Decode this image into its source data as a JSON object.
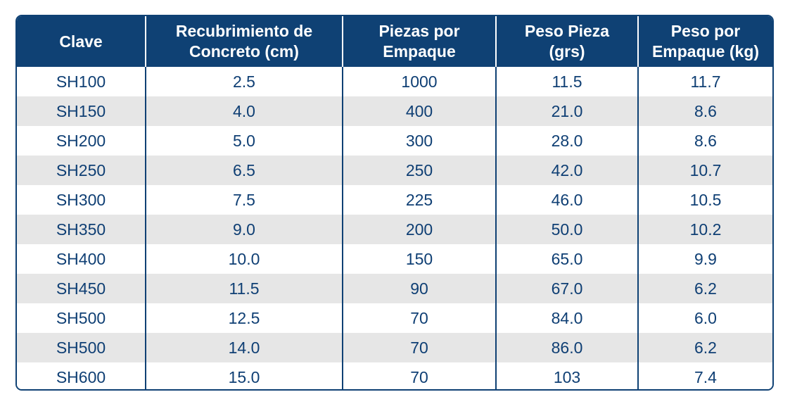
{
  "table": {
    "headers": [
      "Clave",
      "Recubrimiento de\nConcreto (cm)",
      "Piezas por\nEmpaque",
      "Peso Pieza\n(grs)",
      "Peso por\nEmpaque (kg)"
    ],
    "rows": [
      [
        "SH100",
        "2.5",
        "1000",
        "11.5",
        "11.7"
      ],
      [
        "SH150",
        "4.0",
        "400",
        "21.0",
        "8.6"
      ],
      [
        "SH200",
        "5.0",
        "300",
        "28.0",
        "8.6"
      ],
      [
        "SH250",
        "6.5",
        "250",
        "42.0",
        "10.7"
      ],
      [
        "SH300",
        "7.5",
        "225",
        "46.0",
        "10.5"
      ],
      [
        "SH350",
        "9.0",
        "200",
        "50.0",
        "10.2"
      ],
      [
        "SH400",
        "10.0",
        "150",
        "65.0",
        "9.9"
      ],
      [
        "SH450",
        "11.5",
        "90",
        "67.0",
        "6.2"
      ],
      [
        "SH500",
        "12.5",
        "70",
        "84.0",
        "6.0"
      ],
      [
        "SH500",
        "14.0",
        "70",
        "86.0",
        "6.2"
      ],
      [
        "SH600",
        "15.0",
        "70",
        "103",
        "7.4"
      ]
    ]
  },
  "colors": {
    "header_background": "#0f4174",
    "header_text": "#ffffff",
    "body_text": "#0f3f74",
    "stripe": "#e6e6e6",
    "border": "#0f4174"
  }
}
